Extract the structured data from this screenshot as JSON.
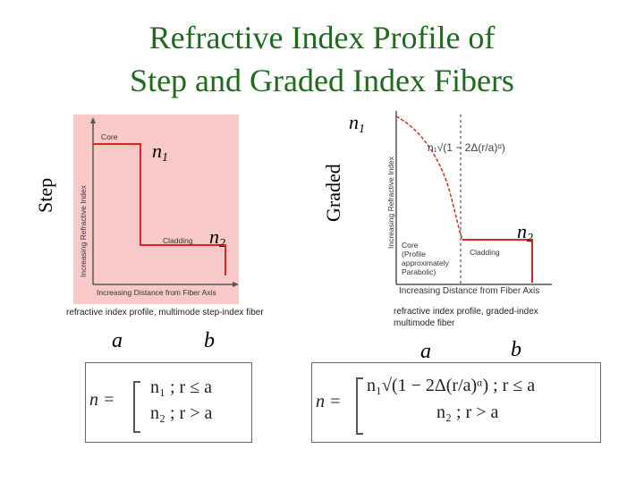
{
  "title": {
    "line1": "Refractive Index Profile of",
    "line2": "Step and Graded Index Fibers"
  },
  "step": {
    "side_label": "Step",
    "y_axis": "Increasing Refractive Index",
    "x_axis": "Increasing Distance from Fiber Axis",
    "core_label": "Core",
    "cladding_label": "Cladding",
    "caption": "refractive index profile, multimode step-index fiber",
    "n1": "n",
    "n1_sub": "1",
    "n2": "n",
    "n2_sub": "2",
    "a": "a",
    "b": "b",
    "eq_lhs": "n =",
    "eq_case1": "n₁ ; r ≤ a",
    "eq_case2": "n₂ ; r > a",
    "background_color": "#f9c8c8"
  },
  "graded": {
    "side_label": "Graded",
    "y_axis": "Increasing Refractive Index",
    "x_axis": "Increasing Distance from Fiber Axis",
    "formula": "n₁√(1 − 2Δ(r/a)ᵅ)",
    "core_label_1": "Core",
    "core_label_2": "(Profile",
    "core_label_3": "approximately",
    "core_label_4": "Parabolic)",
    "cladding_label": "Cladding",
    "caption_1": "refractive index profile, graded-index",
    "caption_2": "multimode fiber",
    "n1": "n",
    "n1_sub": "1",
    "n2": "n",
    "n2_sub": "2",
    "a": "a",
    "b": "b",
    "eq_lhs": "n =",
    "eq_case1": "n₁√(1 − 2Δ(r/a)ᵅ) ; r ≤ a",
    "eq_case2": "n₂ ; r > a",
    "curve_color": "#c0392b"
  }
}
